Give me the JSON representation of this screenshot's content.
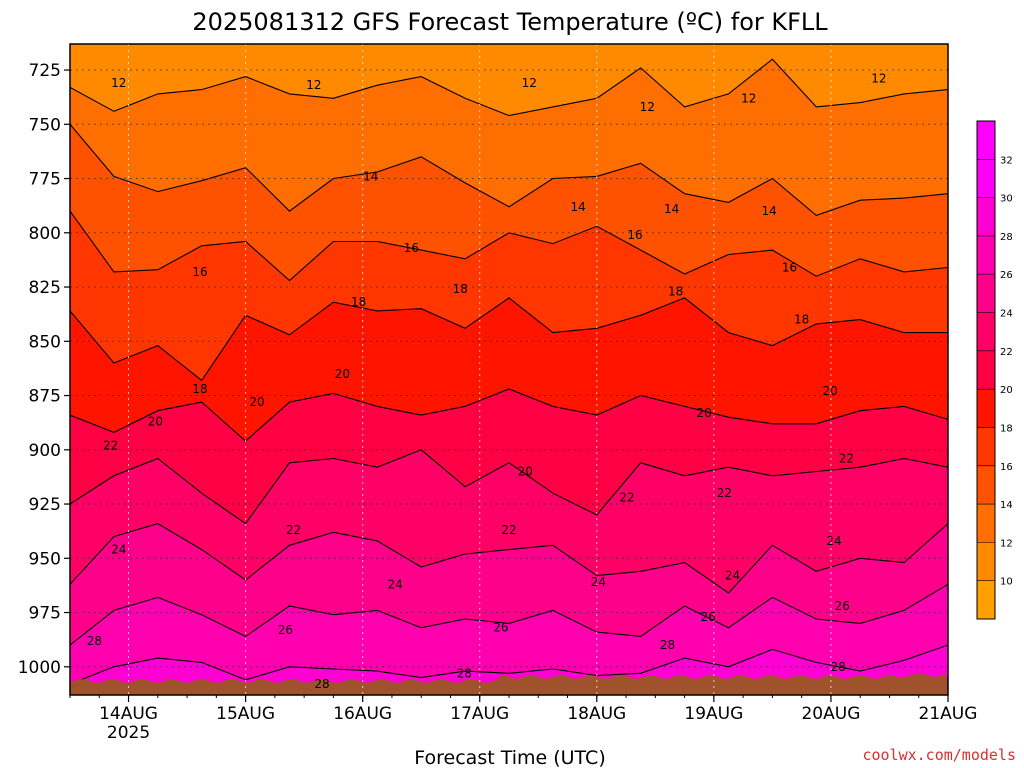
{
  "chart_data": {
    "type": "heatmap",
    "title": "2025081312 GFS Forecast Temperature (ºC) for KFLL",
    "xlabel": "Forecast Time (UTC)",
    "ylabel": "",
    "x_ticks": [
      "14AUG",
      "15AUG",
      "16AUG",
      "17AUG",
      "18AUG",
      "19AUG",
      "20AUG",
      "21AUG"
    ],
    "x_tick_hours": [
      12,
      36,
      60,
      84,
      108,
      132,
      156,
      180
    ],
    "x_sublabel": "2025",
    "xlim_hours": [
      0,
      180
    ],
    "y_ticks": [
      725,
      750,
      775,
      800,
      825,
      850,
      875,
      900,
      925,
      950,
      975,
      1000
    ],
    "ylim": [
      1013,
      713
    ],
    "grid": true,
    "colorbar": {
      "levels": [
        10,
        12,
        14,
        16,
        18,
        20,
        22,
        24,
        26,
        28,
        30,
        32
      ],
      "colors": [
        "#ff9f00",
        "#ff8a00",
        "#ff6e00",
        "#ff5200",
        "#ff3600",
        "#ff1400",
        "#ff0044",
        "#ff0066",
        "#ff008a",
        "#ff00ae",
        "#ff00d2",
        "#ff00f6",
        "#ff00ff"
      ]
    },
    "surface_color": "#a0522d",
    "contours": [
      {
        "level": 12,
        "p": [
          733,
          744,
          736,
          734,
          728,
          736,
          738,
          732,
          728,
          738,
          746,
          742,
          738,
          724,
          742,
          736,
          720,
          742,
          740,
          736,
          734
        ]
      },
      {
        "level": 14,
        "p": [
          750,
          774,
          781,
          776,
          770,
          790,
          775,
          772,
          765,
          777,
          788,
          775,
          774,
          768,
          782,
          786,
          775,
          792,
          785,
          784,
          782
        ]
      },
      {
        "level": 16,
        "p": [
          790,
          818,
          817,
          806,
          804,
          822,
          804,
          804,
          808,
          812,
          800,
          805,
          797,
          808,
          819,
          810,
          808,
          820,
          812,
          818,
          816
        ]
      },
      {
        "level": 18,
        "p": [
          836,
          860,
          852,
          868,
          838,
          847,
          832,
          836,
          835,
          844,
          830,
          846,
          844,
          838,
          830,
          846,
          852,
          842,
          840,
          846,
          846
        ]
      },
      {
        "level": 20,
        "p": [
          884,
          892,
          882,
          878,
          896,
          878,
          874,
          880,
          884,
          880,
          872,
          880,
          884,
          875,
          880,
          885,
          888,
          888,
          882,
          880,
          886
        ]
      },
      {
        "level": 22,
        "p": [
          925,
          912,
          904,
          920,
          934,
          906,
          904,
          908,
          900,
          917,
          906,
          920,
          930,
          906,
          912,
          908,
          912,
          910,
          908,
          904,
          908
        ]
      },
      {
        "level": 24,
        "p": [
          962,
          940,
          934,
          946,
          960,
          944,
          938,
          942,
          954,
          948,
          946,
          944,
          958,
          956,
          952,
          966,
          944,
          956,
          950,
          952,
          934
        ]
      },
      {
        "level": 26,
        "p": [
          990,
          974,
          968,
          976,
          986,
          972,
          976,
          974,
          982,
          978,
          980,
          974,
          984,
          986,
          972,
          982,
          968,
          978,
          980,
          974,
          962
        ]
      },
      {
        "level": 28,
        "p": [
          1008,
          1000,
          996,
          998,
          1006,
          1000,
          1001,
          1002,
          1005,
          1002,
          1003,
          1001,
          1004,
          1003,
          996,
          1000,
          992,
          998,
          1002,
          997,
          990
        ]
      }
    ],
    "contour_labels": [
      {
        "text": "12",
        "hour": 12,
        "p": 731
      },
      {
        "text": "12",
        "hour": 60,
        "p": 732
      },
      {
        "text": "12",
        "hour": 113,
        "p": 731
      },
      {
        "text": "12",
        "hour": 142,
        "p": 742
      },
      {
        "text": "12",
        "hour": 167,
        "p": 738
      },
      {
        "text": "12",
        "hour": 199,
        "p": 729
      },
      {
        "text": "14",
        "hour": 74,
        "p": 774
      },
      {
        "text": "14",
        "hour": 125,
        "p": 788
      },
      {
        "text": "14",
        "hour": 148,
        "p": 789
      },
      {
        "text": "14",
        "hour": 172,
        "p": 790
      },
      {
        "text": "16",
        "hour": 32,
        "p": 818
      },
      {
        "text": "16",
        "hour": 84,
        "p": 807
      },
      {
        "text": "16",
        "hour": 139,
        "p": 801
      },
      {
        "text": "16",
        "hour": 177,
        "p": 816
      },
      {
        "text": "18",
        "hour": 32,
        "p": 872
      },
      {
        "text": "18",
        "hour": 71,
        "p": 832
      },
      {
        "text": "18",
        "hour": 96,
        "p": 826
      },
      {
        "text": "18",
        "hour": 149,
        "p": 827
      },
      {
        "text": "18",
        "hour": 180,
        "p": 840
      },
      {
        "text": "20",
        "hour": 21,
        "p": 887
      },
      {
        "text": "20",
        "hour": 46,
        "p": 878
      },
      {
        "text": "20",
        "hour": 67,
        "p": 865
      },
      {
        "text": "20",
        "hour": 112,
        "p": 910
      },
      {
        "text": "20",
        "hour": 156,
        "p": 883
      },
      {
        "text": "20",
        "hour": 187,
        "p": 873
      },
      {
        "text": "22",
        "hour": 10,
        "p": 898
      },
      {
        "text": "22",
        "hour": 55,
        "p": 937
      },
      {
        "text": "22",
        "hour": 108,
        "p": 937
      },
      {
        "text": "22",
        "hour": 137,
        "p": 922
      },
      {
        "text": "22",
        "hour": 161,
        "p": 920
      },
      {
        "text": "22",
        "hour": 191,
        "p": 904
      },
      {
        "text": "24",
        "hour": 12,
        "p": 946
      },
      {
        "text": "24",
        "hour": 80,
        "p": 962
      },
      {
        "text": "24",
        "hour": 130,
        "p": 961
      },
      {
        "text": "24",
        "hour": 163,
        "p": 958
      },
      {
        "text": "24",
        "hour": 188,
        "p": 942
      },
      {
        "text": "26",
        "hour": 53,
        "p": 983
      },
      {
        "text": "26",
        "hour": 106,
        "p": 982
      },
      {
        "text": "26",
        "hour": 157,
        "p": 977
      },
      {
        "text": "26",
        "hour": 190,
        "p": 972
      },
      {
        "text": "28",
        "hour": 6,
        "p": 988
      },
      {
        "text": "28",
        "hour": 62,
        "p": 1008
      },
      {
        "text": "28",
        "hour": 97,
        "p": 1003
      },
      {
        "text": "28",
        "hour": 147,
        "p": 990
      },
      {
        "text": "28",
        "hour": 189,
        "p": 1000
      }
    ]
  },
  "credit": "coolwx.com/models"
}
